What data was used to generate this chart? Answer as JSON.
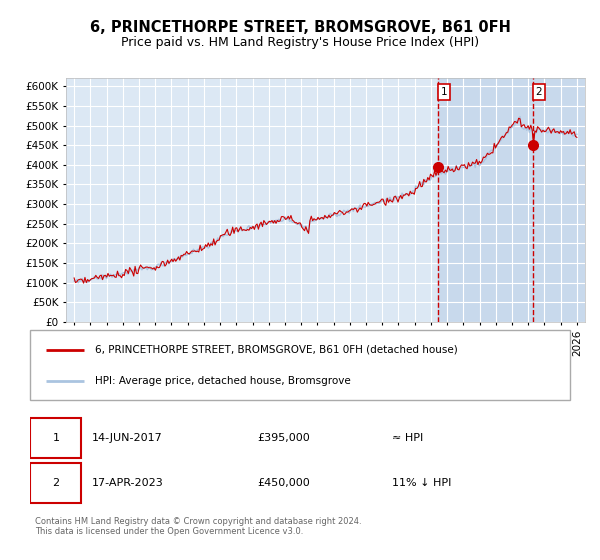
{
  "title": "6, PRINCETHORPE STREET, BROMSGROVE, B61 0FH",
  "subtitle": "Price paid vs. HM Land Registry's House Price Index (HPI)",
  "ytick_values": [
    0,
    50000,
    100000,
    150000,
    200000,
    250000,
    300000,
    350000,
    400000,
    450000,
    500000,
    550000,
    600000
  ],
  "x_start_year": 1995,
  "x_end_year": 2026,
  "hpi_line_color": "#aac4e0",
  "price_line_color": "#cc0000",
  "purchase1_date": "14-JUN-2017",
  "purchase1_price": 395000,
  "purchase1_label": "≈ HPI",
  "purchase2_date": "17-APR-2023",
  "purchase2_price": 450000,
  "purchase2_label": "11% ↓ HPI",
  "vline_color": "#cc0000",
  "marker_color": "#cc0000",
  "bg_plot_color": "#dce8f4",
  "grid_color": "#ffffff",
  "legend_label_1": "6, PRINCETHORPE STREET, BROMSGROVE, B61 0FH (detached house)",
  "legend_label_2": "HPI: Average price, detached house, Bromsgrove",
  "footer_text": "Contains HM Land Registry data © Crown copyright and database right 2024.\nThis data is licensed under the Open Government Licence v3.0.",
  "title_fontsize": 10.5,
  "subtitle_fontsize": 9,
  "tick_fontsize": 7.5,
  "legend_fontsize": 7.5,
  "table_fontsize": 8
}
